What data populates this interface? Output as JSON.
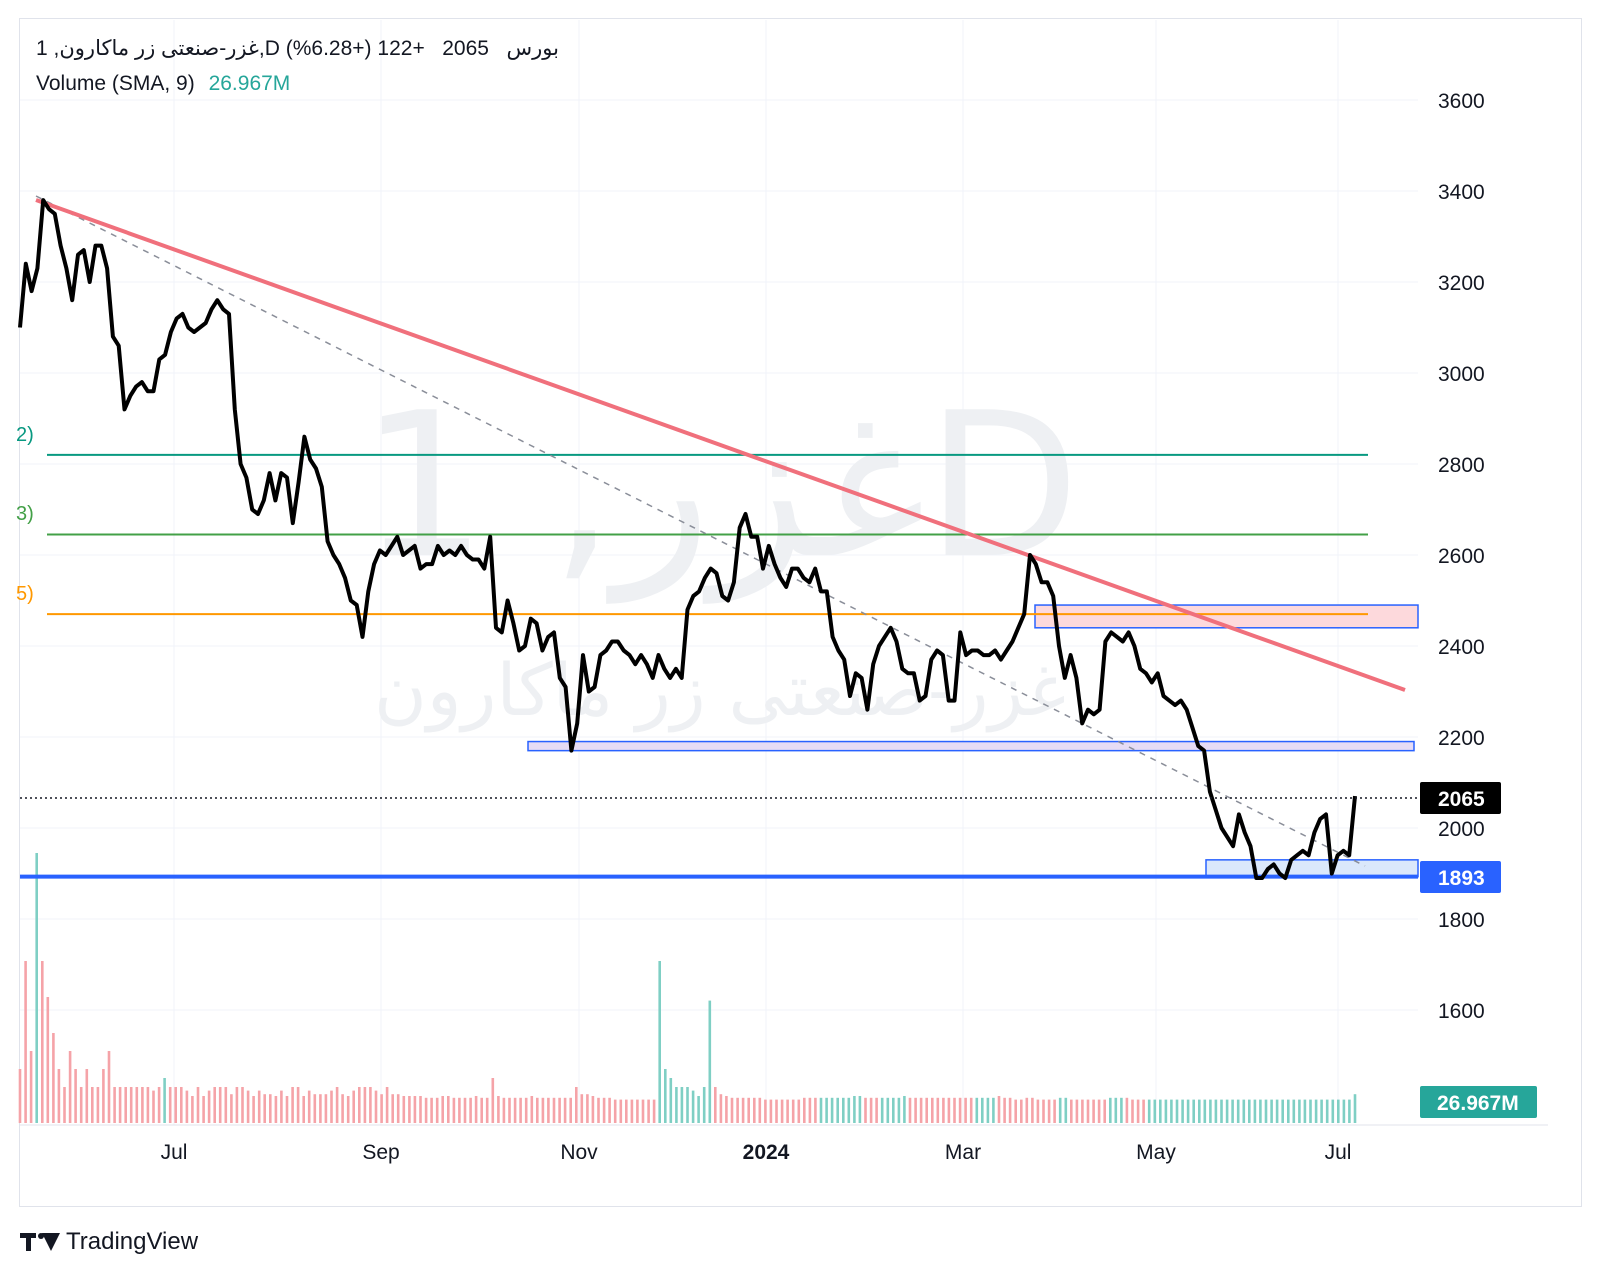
{
  "legend": {
    "symbol": "1 ,غزر-صنعتی زر ماکارون,D بورس",
    "price": "2065",
    "change": "+122 (+6.28%)",
    "volume_label": "Volume (SMA, 9)",
    "volume_value": "26.967M"
  },
  "watermark": {
    "symbol": "غزر, 1D",
    "name": "غزر-صنعتی زر ماکارون"
  },
  "brand": {
    "name": "TradingView",
    "icon": "tradingview-logo-icon"
  },
  "price_labels": {
    "last": "2065",
    "support": "1893",
    "volume": "26.967M"
  },
  "level_tags": [
    "2)",
    "3)",
    "5)"
  ],
  "colors": {
    "price_line": "#000000",
    "trendline": "#f0707c",
    "dashed_trend": "#8a8e99",
    "level_teal": "#089981",
    "level_green": "#43a047",
    "level_orange": "#ff9800",
    "support_line": "#2962ff",
    "vol_up": "#7fcfc4",
    "vol_down": "#f5a3a8",
    "zone_red_fill": "#fdd9dc",
    "zone_blue_fill": "#dbe8fb",
    "zone_border": "#2962ff"
  },
  "chart_data": {
    "type": "line",
    "title": "",
    "xlabel": "",
    "ylabel": "",
    "ylim": [
      1580,
      3640
    ],
    "y_ticks": [
      3600,
      3400,
      3200,
      3000,
      2800,
      2600,
      2400,
      2200,
      2000,
      1800,
      1600
    ],
    "x_ticks": [
      "Jul",
      "Sep",
      "Nov",
      "2024",
      "Mar",
      "May",
      "Jul"
    ],
    "grid": true,
    "series": [
      {
        "values": [
          3100,
          3240,
          3180,
          3230,
          3380,
          3360,
          3350,
          3280,
          3230,
          3160,
          3260,
          3270,
          3200,
          3280,
          3280,
          3230,
          3080,
          3060,
          2920,
          2950,
          2970,
          2980,
          2960,
          2960,
          3030,
          3040,
          3090,
          3120,
          3130,
          3100,
          3090,
          3100,
          3110,
          3140,
          3160,
          3140,
          3130,
          2920,
          2800,
          2770,
          2700,
          2690,
          2720,
          2780,
          2720,
          2780,
          2770,
          2670,
          2760,
          2860,
          2810,
          2790,
          2750,
          2630,
          2600,
          2580,
          2550,
          2500,
          2490,
          2420,
          2520,
          2580,
          2610,
          2600,
          2620,
          2640,
          2600,
          2610,
          2620,
          2570,
          2580,
          2580,
          2620,
          2600,
          2610,
          2600,
          2620,
          2600,
          2590,
          2590,
          2570,
          2640,
          2440,
          2430,
          2500,
          2450,
          2390,
          2400,
          2460,
          2450,
          2390,
          2420,
          2430,
          2330,
          2310,
          2170,
          2230,
          2380,
          2300,
          2310,
          2380,
          2390,
          2410,
          2410,
          2390,
          2380,
          2360,
          2380,
          2360,
          2330,
          2380,
          2350,
          2330,
          2350,
          2330,
          2480,
          2510,
          2520,
          2550,
          2570,
          2560,
          2510,
          2500,
          2540,
          2660,
          2690,
          2640,
          2640,
          2570,
          2620,
          2580,
          2550,
          2530,
          2570,
          2570,
          2550,
          2540,
          2570,
          2520,
          2520,
          2420,
          2390,
          2370,
          2290,
          2340,
          2330,
          2260,
          2360,
          2400,
          2420,
          2440,
          2410,
          2350,
          2340,
          2340,
          2280,
          2290,
          2370,
          2390,
          2380,
          2280,
          2280,
          2430,
          2380,
          2390,
          2390,
          2380,
          2380,
          2390,
          2370,
          2390,
          2410,
          2440,
          2470,
          2600,
          2580,
          2540,
          2540,
          2510,
          2400,
          2330,
          2380,
          2330,
          2230,
          2260,
          2250,
          2260,
          2410,
          2430,
          2420,
          2410,
          2430,
          2400,
          2350,
          2340,
          2320,
          2340,
          2290,
          2280,
          2270,
          2280,
          2260,
          2220,
          2180,
          2170,
          2080,
          2040,
          2000,
          1980,
          1960,
          2030,
          1990,
          1960,
          1890,
          1890,
          1910,
          1920,
          1900,
          1890,
          1930,
          1940,
          1950,
          1940,
          1990,
          2020,
          2030,
          1900,
          1940,
          1950,
          1940,
          2070
        ]
      }
    ],
    "volume_series": {
      "sma": 26.967,
      "bars": [
        [
          3,
          0
        ],
        [
          9,
          0
        ],
        [
          4,
          0
        ],
        [
          15,
          1
        ],
        [
          9,
          0
        ],
        [
          7,
          0
        ],
        [
          5,
          0
        ],
        [
          3,
          0
        ],
        [
          2,
          0
        ],
        [
          4,
          0
        ],
        [
          3,
          0
        ],
        [
          2,
          0
        ],
        [
          3,
          0
        ],
        [
          2,
          0
        ],
        [
          2,
          0
        ],
        [
          3,
          0
        ],
        [
          4,
          0
        ],
        [
          2,
          0
        ],
        [
          2,
          0
        ],
        [
          2,
          0
        ],
        [
          2,
          0
        ],
        [
          2,
          0
        ],
        [
          2,
          0
        ],
        [
          2,
          0
        ],
        [
          1.8,
          0
        ],
        [
          2,
          0
        ],
        [
          2.5,
          1
        ],
        [
          2,
          0
        ],
        [
          2,
          0
        ],
        [
          2,
          0
        ],
        [
          1.8,
          0
        ],
        [
          1.5,
          0
        ],
        [
          2,
          0
        ],
        [
          1.5,
          0
        ],
        [
          1.8,
          0
        ],
        [
          2,
          0
        ],
        [
          2,
          0
        ],
        [
          2,
          0
        ],
        [
          1.6,
          0
        ],
        [
          2,
          0
        ],
        [
          2,
          0
        ],
        [
          1.8,
          0
        ],
        [
          1.5,
          0
        ],
        [
          1.8,
          0
        ],
        [
          1.6,
          0
        ],
        [
          1.6,
          0
        ],
        [
          1.5,
          0
        ],
        [
          1.8,
          0
        ],
        [
          1.5,
          0
        ],
        [
          2,
          0
        ],
        [
          2,
          0
        ],
        [
          1.5,
          0
        ],
        [
          1.8,
          0
        ],
        [
          1.6,
          0
        ],
        [
          1.6,
          0
        ],
        [
          1.6,
          0
        ],
        [
          1.8,
          0
        ],
        [
          2,
          0
        ],
        [
          1.6,
          0
        ],
        [
          1.5,
          0
        ],
        [
          1.8,
          0
        ],
        [
          2,
          0
        ],
        [
          2,
          0
        ],
        [
          2,
          0
        ],
        [
          1.8,
          0
        ],
        [
          1.6,
          0
        ],
        [
          2,
          0
        ],
        [
          1.6,
          0
        ],
        [
          1.6,
          0
        ],
        [
          1.5,
          0
        ],
        [
          1.5,
          0
        ],
        [
          1.5,
          0
        ],
        [
          1.5,
          0
        ],
        [
          1.4,
          0
        ],
        [
          1.4,
          0
        ],
        [
          1.4,
          0
        ],
        [
          1.5,
          0
        ],
        [
          1.5,
          0
        ],
        [
          1.4,
          0
        ],
        [
          1.4,
          0
        ],
        [
          1.4,
          0
        ],
        [
          1.4,
          0
        ],
        [
          1.5,
          0
        ],
        [
          1.4,
          0
        ],
        [
          1.4,
          0
        ],
        [
          2.5,
          0
        ],
        [
          1.5,
          0
        ],
        [
          1.4,
          0
        ],
        [
          1.4,
          0
        ],
        [
          1.4,
          0
        ],
        [
          1.4,
          0
        ],
        [
          1.4,
          0
        ],
        [
          1.5,
          0
        ],
        [
          1.4,
          0
        ],
        [
          1.4,
          0
        ],
        [
          1.4,
          0
        ],
        [
          1.4,
          0
        ],
        [
          1.4,
          0
        ],
        [
          1.4,
          0
        ],
        [
          1.4,
          0
        ],
        [
          2,
          0
        ],
        [
          1.6,
          0
        ],
        [
          1.6,
          0
        ],
        [
          1.5,
          0
        ],
        [
          1.4,
          0
        ],
        [
          1.4,
          0
        ],
        [
          1.4,
          0
        ],
        [
          1.3,
          0
        ],
        [
          1.3,
          0
        ],
        [
          1.3,
          0
        ],
        [
          1.3,
          0
        ],
        [
          1.3,
          0
        ],
        [
          1.3,
          0
        ],
        [
          1.3,
          0
        ],
        [
          1.3,
          0
        ],
        [
          9,
          1
        ],
        [
          3,
          1
        ],
        [
          2.5,
          1
        ],
        [
          2,
          1
        ],
        [
          2,
          1
        ],
        [
          2,
          1
        ],
        [
          1.8,
          1
        ],
        [
          1.5,
          1
        ],
        [
          2,
          1
        ],
        [
          6.8,
          1
        ],
        [
          2,
          0
        ],
        [
          1.6,
          0
        ],
        [
          1.5,
          0
        ],
        [
          1.4,
          0
        ],
        [
          1.4,
          0
        ],
        [
          1.4,
          0
        ],
        [
          1.4,
          0
        ],
        [
          1.4,
          0
        ],
        [
          1.4,
          0
        ],
        [
          1.3,
          0
        ],
        [
          1.3,
          0
        ],
        [
          1.3,
          0
        ],
        [
          1.3,
          0
        ],
        [
          1.3,
          0
        ],
        [
          1.3,
          0
        ],
        [
          1.3,
          0
        ],
        [
          1.4,
          0
        ],
        [
          1.4,
          0
        ],
        [
          1.4,
          0
        ],
        [
          1.4,
          1
        ],
        [
          1.4,
          1
        ],
        [
          1.4,
          1
        ],
        [
          1.4,
          1
        ],
        [
          1.4,
          1
        ],
        [
          1.4,
          1
        ],
        [
          1.5,
          1
        ],
        [
          1.5,
          1
        ],
        [
          1.4,
          0
        ],
        [
          1.4,
          0
        ],
        [
          1.4,
          0
        ],
        [
          1.4,
          1
        ],
        [
          1.4,
          1
        ],
        [
          1.4,
          1
        ],
        [
          1.4,
          1
        ],
        [
          1.5,
          1
        ],
        [
          1.4,
          0
        ],
        [
          1.4,
          0
        ],
        [
          1.4,
          0
        ],
        [
          1.4,
          0
        ],
        [
          1.4,
          0
        ],
        [
          1.4,
          0
        ],
        [
          1.4,
          0
        ],
        [
          1.4,
          0
        ],
        [
          1.4,
          0
        ],
        [
          1.4,
          0
        ],
        [
          1.4,
          0
        ],
        [
          1.4,
          0
        ],
        [
          1.4,
          1
        ],
        [
          1.4,
          1
        ],
        [
          1.4,
          1
        ],
        [
          1.4,
          1
        ],
        [
          1.5,
          0
        ],
        [
          1.4,
          0
        ],
        [
          1.4,
          0
        ],
        [
          1.3,
          0
        ],
        [
          1.3,
          0
        ],
        [
          1.4,
          0
        ],
        [
          1.4,
          0
        ],
        [
          1.3,
          0
        ],
        [
          1.3,
          0
        ],
        [
          1.3,
          0
        ],
        [
          1.3,
          0
        ],
        [
          1.4,
          1
        ],
        [
          1.4,
          1
        ],
        [
          1.3,
          0
        ],
        [
          1.3,
          0
        ],
        [
          1.3,
          0
        ],
        [
          1.3,
          0
        ],
        [
          1.3,
          0
        ],
        [
          1.3,
          0
        ],
        [
          1.3,
          0
        ],
        [
          1.4,
          1
        ],
        [
          1.4,
          1
        ],
        [
          1.4,
          1
        ],
        [
          1.4,
          0
        ],
        [
          1.3,
          0
        ],
        [
          1.3,
          0
        ],
        [
          1.3,
          0
        ],
        [
          1.3,
          1
        ],
        [
          1.3,
          1
        ],
        [
          1.3,
          1
        ],
        [
          1.3,
          1
        ],
        [
          1.3,
          1
        ],
        [
          1.3,
          1
        ],
        [
          1.3,
          1
        ],
        [
          1.3,
          1
        ],
        [
          1.3,
          1
        ],
        [
          1.3,
          1
        ],
        [
          1.3,
          1
        ],
        [
          1.3,
          1
        ],
        [
          1.3,
          1
        ],
        [
          1.3,
          1
        ],
        [
          1.3,
          1
        ],
        [
          1.3,
          1
        ],
        [
          1.3,
          1
        ],
        [
          1.3,
          1
        ],
        [
          1.3,
          1
        ],
        [
          1.3,
          1
        ],
        [
          1.3,
          1
        ],
        [
          1.3,
          1
        ],
        [
          1.3,
          1
        ],
        [
          1.3,
          1
        ],
        [
          1.3,
          1
        ],
        [
          1.3,
          1
        ],
        [
          1.3,
          1
        ],
        [
          1.3,
          1
        ],
        [
          1.3,
          1
        ],
        [
          1.3,
          1
        ],
        [
          1.3,
          1
        ],
        [
          1.3,
          1
        ],
        [
          1.3,
          1
        ],
        [
          1.3,
          1
        ],
        [
          1.3,
          1
        ],
        [
          1.3,
          1
        ],
        [
          1.3,
          1
        ],
        [
          1.6,
          1
        ]
      ]
    },
    "horizontal_levels": [
      {
        "value": 2820,
        "color": "#089981"
      },
      {
        "value": 2645,
        "color": "#43a047"
      },
      {
        "value": 2470,
        "color": "#ff9800"
      },
      {
        "value": 1893,
        "color": "#2962ff"
      }
    ],
    "zones": [
      {
        "from": 2440,
        "to": 2490,
        "color": "red"
      },
      {
        "from": 2170,
        "to": 2190,
        "color": "blue"
      },
      {
        "from": 1893,
        "to": 1930,
        "color": "blue"
      }
    ],
    "last_price": 2065
  }
}
